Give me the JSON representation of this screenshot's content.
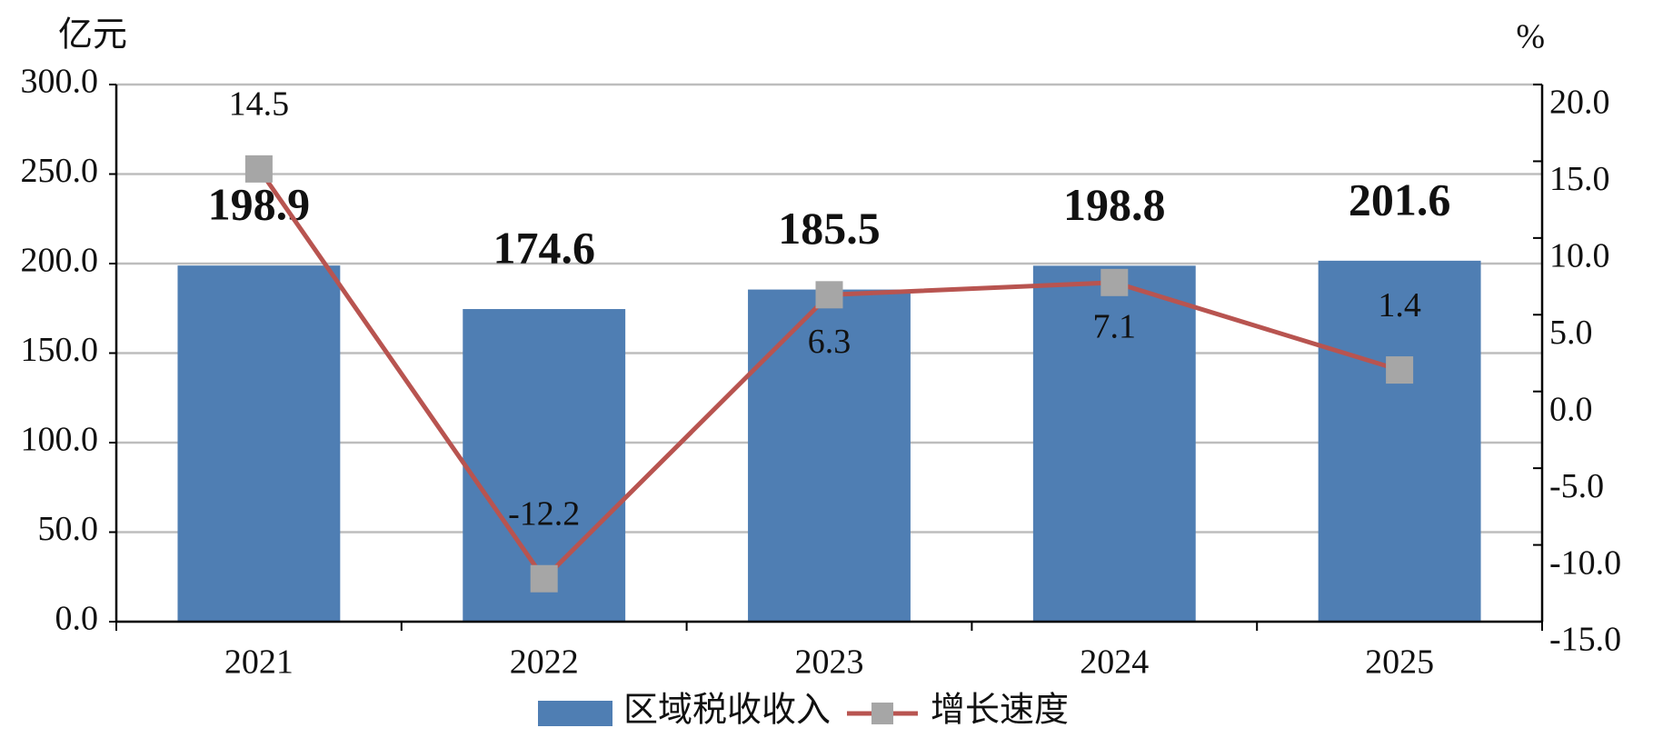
{
  "chart_data": {
    "type": "bar",
    "ylabel": "亿元",
    "y2label": "%",
    "categories": [
      "2021",
      "2022",
      "2023",
      "2024",
      "2025"
    ],
    "series": [
      {
        "name": "区域税收收入",
        "type": "bar",
        "color": "#4f7eb3",
        "values": [
          198.9,
          174.6,
          185.5,
          198.8,
          201.6
        ]
      },
      {
        "name": "增长速度",
        "type": "line",
        "axis": "y2",
        "color": "#b85450",
        "marker_color": "#a6a6a6",
        "values": [
          14.5,
          -12.2,
          6.3,
          7.1,
          1.4
        ]
      }
    ],
    "ylim": [
      0,
      300
    ],
    "yticks": [
      {
        "value": 0,
        "label": "0.0"
      },
      {
        "value": 50,
        "label": "50.0"
      },
      {
        "value": 100,
        "label": "100.0"
      },
      {
        "value": 150,
        "label": "150.0"
      },
      {
        "value": 200,
        "label": "200.0"
      },
      {
        "value": 250,
        "label": "250.0"
      },
      {
        "value": 300,
        "label": "300.0"
      }
    ],
    "y2lim": [
      -15,
      20
    ],
    "y2ticks": [
      {
        "value": -15,
        "label": "-15.0"
      },
      {
        "value": -10,
        "label": "-10.0"
      },
      {
        "value": -5,
        "label": "-5.0"
      },
      {
        "value": 0,
        "label": "0.0"
      },
      {
        "value": 5,
        "label": "5.0"
      },
      {
        "value": 10,
        "label": "10.0"
      },
      {
        "value": 15,
        "label": "15.0"
      },
      {
        "value": 20,
        "label": "20.0"
      }
    ],
    "grid": true,
    "legend": "bottom"
  }
}
